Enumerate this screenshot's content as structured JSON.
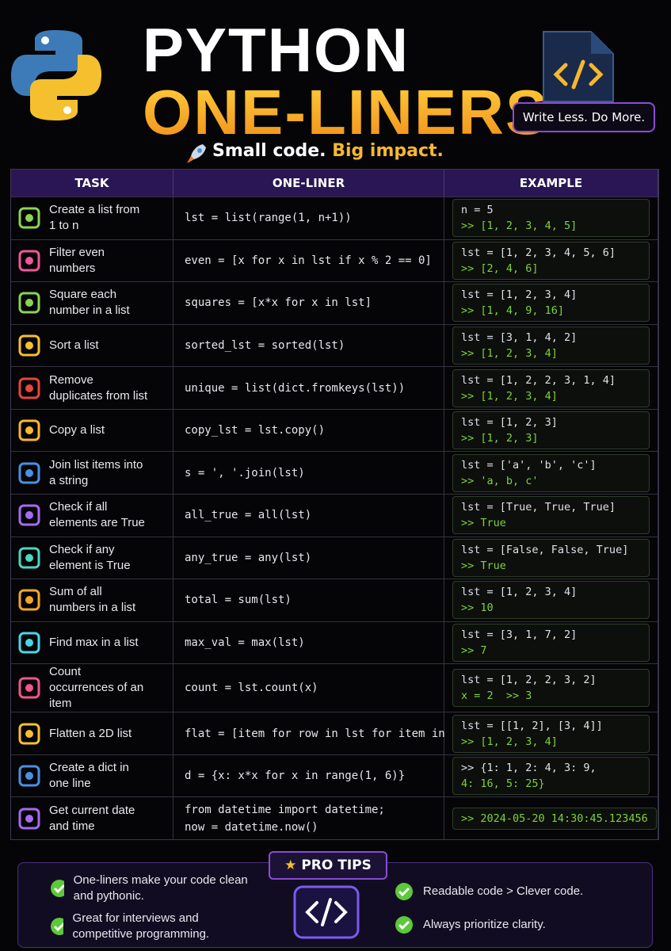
{
  "header": {
    "title": "PYTHON",
    "title2": "ONE-LINERS",
    "subtitle_a": "Small code.",
    "subtitle_b": "Big impact.",
    "badge": "Write Less. Do More."
  },
  "table": {
    "columns": [
      "TASK",
      "ONE-LINER",
      "EXAMPLE"
    ],
    "rows": [
      {
        "task": "Create a list from 1 to n",
        "code": [
          "lst = list(range(1, n+1))"
        ],
        "example": [
          "n = 5",
          ">> [1, 2, 3, 4, 5]"
        ],
        "icon_color": "#8bd450"
      },
      {
        "task": "Filter even numbers",
        "code": [
          "even = [x for x in lst if x % 2 == 0]"
        ],
        "example": [
          "lst = [1, 2, 3, 4, 5, 6]",
          ">> [2, 4, 6]"
        ],
        "icon_color": "#f0569a"
      },
      {
        "task": "Square each number in a list",
        "code": [
          "squares = [x*x for x in lst]"
        ],
        "example": [
          "lst = [1, 2, 3, 4]",
          ">> [1, 4, 9, 16]"
        ],
        "icon_color": "#8bd450"
      },
      {
        "task": "Sort a list",
        "code": [
          "sorted_lst = sorted(lst)"
        ],
        "example": [
          "lst = [3, 1, 4, 2]",
          ">> [1, 2, 3, 4]"
        ],
        "icon_color": "#f5c02e"
      },
      {
        "task": "Remove duplicates from list",
        "code": [
          "unique = list(dict.fromkeys(lst))"
        ],
        "example": [
          "lst = [1, 2, 2, 3, 1, 4]",
          ">> [1, 2, 3, 4]"
        ],
        "icon_color": "#e8453c"
      },
      {
        "task": "Copy a list",
        "code": [
          "copy_lst = lst.copy()"
        ],
        "example": [
          "lst = [1, 2, 3]",
          ">> [1, 2, 3]"
        ],
        "icon_color": "#f5b82e"
      },
      {
        "task": "Join list items into a string",
        "code": [
          "s = ', '.join(lst)"
        ],
        "example": [
          "lst = ['a', 'b', 'c']",
          ">> 'a, b, c'"
        ],
        "icon_color": "#4a90e2"
      },
      {
        "task": "Check if all elements are True",
        "code": [
          "all_true = all(lst)"
        ],
        "example": [
          "lst = [True, True, True]",
          ">> True"
        ],
        "icon_color": "#a66bf0"
      },
      {
        "task": "Check if any element is True",
        "code": [
          "any_true = any(lst)"
        ],
        "example": [
          "lst = [False, False, True]",
          ">> True"
        ],
        "icon_color": "#4ad6c2"
      },
      {
        "task": "Sum of all numbers in a list",
        "code": [
          "total = sum(lst)"
        ],
        "example": [
          "lst = [1, 2, 3, 4]",
          ">> 10"
        ],
        "icon_color": "#f5a623"
      },
      {
        "task": "Find max in a list",
        "code": [
          "max_val = max(lst)"
        ],
        "example": [
          "lst = [3, 1, 7, 2]",
          ">> 7"
        ],
        "icon_color": "#4ad6e6"
      },
      {
        "task": "Count occurrences of an item",
        "code": [
          "count = lst.count(x)"
        ],
        "example": [
          "lst = [1, 2, 2, 3, 2]",
          "x = 2  >> 3"
        ],
        "icon_color": "#f0568a"
      },
      {
        "task": "Flatten a 2D list",
        "code": [
          "flat = [item for row in lst for item in row]"
        ],
        "example": [
          "lst = [[1, 2], [3, 4]]",
          ">> [1, 2, 3, 4]"
        ],
        "icon_color": "#f5c02e"
      },
      {
        "task": "Create a dict in one line",
        "code": [
          "d = {x: x*x for x in range(1, 6)}"
        ],
        "example": [
          ">> {1: 1, 2: 4, 3: 9,",
          "4: 16, 5: 25}"
        ],
        "icon_color": "#4a90e2"
      },
      {
        "task": "Get current date and time",
        "code": [
          "from datetime import datetime;",
          "now = datetime.now()"
        ],
        "example": [
          ">> 2024-05-20 14:30:45.123456"
        ],
        "icon_color": "#a66bf0"
      }
    ]
  },
  "tips": {
    "title": "PRO TIPS",
    "items": [
      "One-liners make your code clean and pythonic.",
      "Great for interviews and competitive programming.",
      "Readable code > Clever code.",
      "Always prioritize clarity."
    ]
  }
}
